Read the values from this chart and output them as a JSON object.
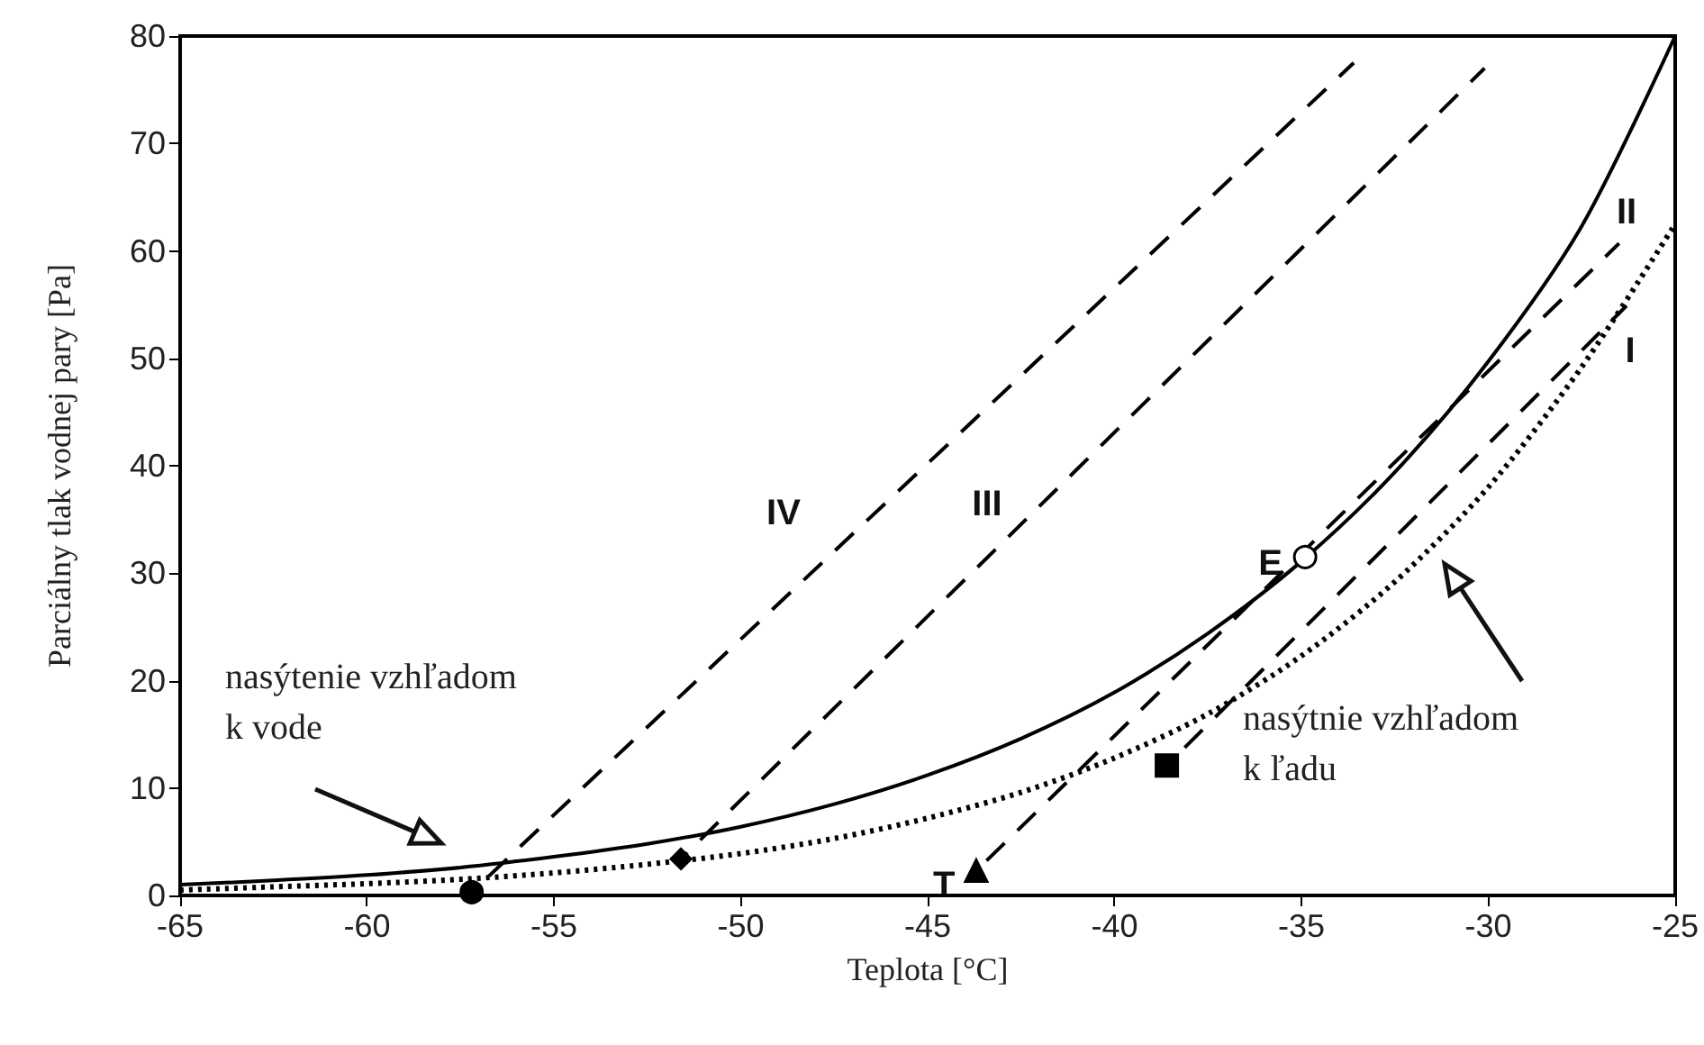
{
  "chart_data": {
    "type": "line",
    "xlabel": "Teplota [°C]",
    "ylabel": "Parciálny tlak vodnej pary [Pa]",
    "xlim": [
      -65,
      -25
    ],
    "xticks": [
      -65,
      -60,
      -55,
      -50,
      -45,
      -40,
      -35,
      -30,
      -25
    ],
    "ylim": [
      0,
      80
    ],
    "yticks": [
      0,
      10,
      20,
      30,
      40,
      50,
      60,
      70,
      80
    ],
    "grid": false,
    "series": [
      {
        "color": "#000000",
        "line_style": "solid",
        "x": [
          -65,
          -62.5,
          -60,
          -57.5,
          -55,
          -52.5,
          -50,
          -47.5,
          -45,
          -42.5,
          -40,
          -37.5,
          -35,
          -32.5,
          -30,
          -27.5,
          -25
        ],
        "values": [
          1.0,
          1.4,
          1.9,
          2.6,
          3.6,
          4.8,
          6.4,
          8.5,
          11.2,
          14.6,
          18.9,
          24.4,
          31.1,
          39.4,
          49.7,
          62.3,
          80
        ]
      },
      {
        "color": "#000000",
        "line_style": "dotted",
        "x": [
          -65,
          -62.5,
          -60,
          -57.5,
          -55,
          -52.5,
          -50,
          -47.5,
          -45,
          -42.5,
          -40,
          -37.5,
          -35,
          -32.5,
          -30,
          -27.5,
          -25
        ],
        "values": [
          0.5,
          0.8,
          1.1,
          1.5,
          2.1,
          2.9,
          3.9,
          5.3,
          7.2,
          9.6,
          12.8,
          16.9,
          22.3,
          29.2,
          38.0,
          49.2,
          62.5
        ]
      },
      {
        "color": "#000000",
        "line_style": "dashed",
        "x": [
          -38.6,
          -26.3
        ],
        "values": [
          12.1,
          54.9
        ]
      },
      {
        "color": "#000000",
        "line_style": "dashed",
        "x": [
          -43.7,
          -26.5
        ],
        "values": [
          2.3,
          60.7
        ]
      },
      {
        "color": "#000000",
        "line_style": "dashed",
        "x": [
          -51.6,
          -30.1
        ],
        "values": [
          3.4,
          77
        ]
      },
      {
        "color": "#000000",
        "line_style": "dashed",
        "x": [
          -57.2,
          -33.6
        ],
        "values": [
          0.3,
          77.5
        ]
      },
      {
        "type": "scatter",
        "color": "#000000",
        "marker": "circle",
        "x": [
          -57.2
        ],
        "values": [
          0.3
        ]
      },
      {
        "type": "scatter",
        "color": "#000000",
        "marker": "diamond",
        "x": [
          -51.6
        ],
        "values": [
          3.4
        ]
      },
      {
        "type": "scatter",
        "color": "#000000",
        "marker": "triangle",
        "x": [
          -43.7
        ],
        "values": [
          2.3
        ]
      },
      {
        "type": "scatter",
        "color": "#000000",
        "marker": "square",
        "x": [
          -38.6
        ],
        "values": [
          12.1
        ]
      },
      {
        "type": "scatter",
        "color": "#ffffff",
        "marker": "circle",
        "x": [
          -34.9
        ],
        "values": [
          31.5
        ]
      }
    ],
    "annotations": [
      {
        "text": "T",
        "x": -43.7,
        "y": 2.3
      },
      {
        "text": "E",
        "x": -34.9,
        "y": 31.5
      },
      "I",
      "II",
      "III",
      "IV",
      "nasýtenie vzhľadom\nk vode",
      "nasýtnie vzhľadom\nk ľadu"
    ]
  }
}
